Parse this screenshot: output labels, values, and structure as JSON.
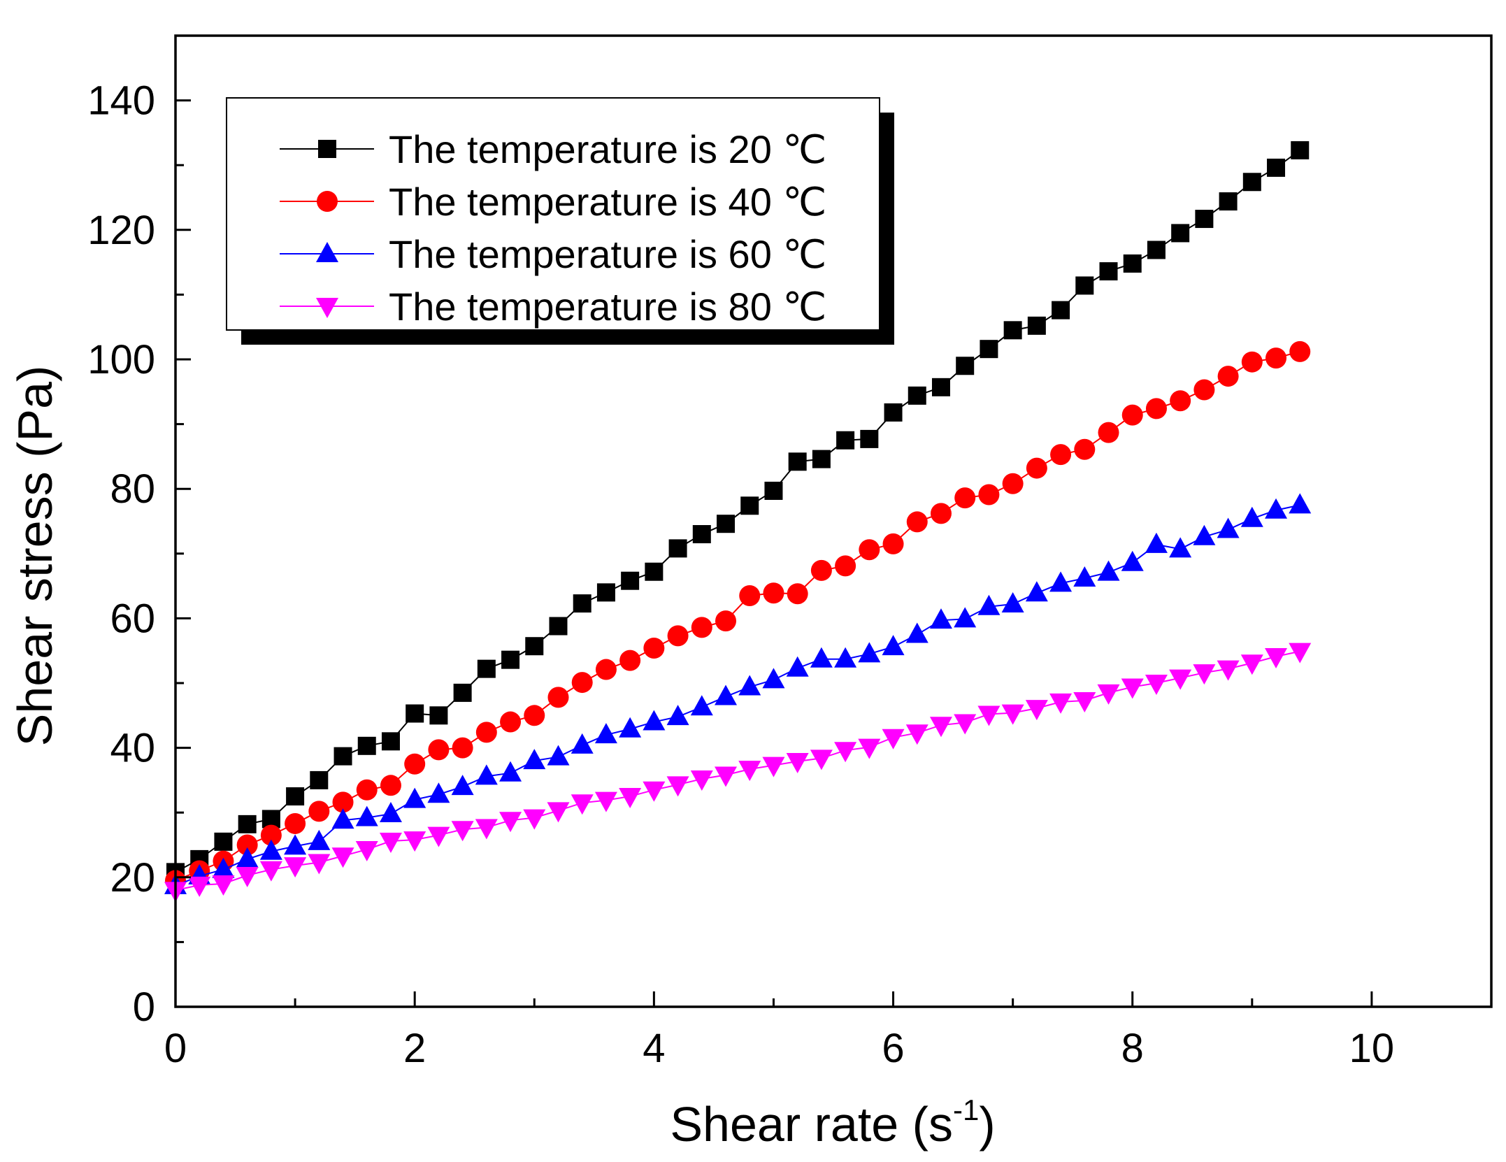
{
  "chart_data": {
    "type": "line",
    "title": "",
    "xlabel": {
      "text": "Shear rate (s",
      "superscript": "-1",
      "suffix": ")"
    },
    "ylabel": "Shear stress (Pa)",
    "xlim": [
      0,
      11
    ],
    "ylim": [
      0,
      150
    ],
    "xticks": [
      0,
      2,
      4,
      6,
      8,
      10
    ],
    "yticks": [
      0,
      20,
      40,
      60,
      80,
      100,
      120,
      140
    ],
    "grid": false,
    "legend": "top-left",
    "x": [
      0,
      0.2,
      0.4,
      0.6,
      0.8,
      1.0,
      1.2,
      1.4,
      1.6,
      1.8,
      2.0,
      2.2,
      2.4,
      2.6,
      2.8,
      3.0,
      3.2,
      3.4,
      3.6,
      3.8,
      4.0,
      4.2,
      4.4,
      4.6,
      4.8,
      5.0,
      5.2,
      5.4,
      5.6,
      5.8,
      6.0,
      6.2,
      6.4,
      6.6,
      6.8,
      7.0,
      7.2,
      7.4,
      7.6,
      7.8,
      8.0,
      8.2,
      8.4,
      8.6,
      8.8,
      9.0,
      9.2,
      9.4
    ],
    "series": [
      {
        "name": "The temperature is 20 ℃",
        "color": "#000000",
        "marker": "square",
        "values": [
          20.8,
          22.8,
          25.5,
          28.2,
          29.0,
          32.5,
          35.0,
          38.7,
          40.3,
          41.0,
          45.3,
          45.0,
          48.5,
          52.2,
          53.6,
          55.7,
          58.8,
          62.3,
          64.0,
          65.8,
          67.2,
          70.8,
          73.0,
          74.6,
          77.4,
          79.7,
          84.2,
          84.6,
          87.5,
          87.7,
          91.8,
          94.4,
          95.7,
          99.0,
          101.6,
          104.5,
          105.2,
          107.6,
          111.4,
          113.6,
          114.8,
          116.9,
          119.5,
          121.7,
          124.4,
          127.4,
          129.6,
          132.3
        ]
      },
      {
        "name": "The temperature is 40 ℃",
        "color": "#ff0000",
        "marker": "circle",
        "values": [
          19.5,
          21.0,
          22.5,
          25.0,
          26.5,
          28.3,
          30.2,
          31.6,
          33.5,
          34.2,
          37.5,
          39.7,
          40.0,
          42.4,
          44.0,
          45.0,
          47.8,
          50.1,
          52.1,
          53.5,
          55.4,
          57.3,
          58.6,
          59.6,
          63.5,
          63.9,
          63.8,
          67.4,
          68.1,
          70.6,
          71.5,
          74.9,
          76.2,
          78.6,
          79.1,
          80.8,
          83.2,
          85.3,
          86.1,
          88.7,
          91.4,
          92.4,
          93.6,
          95.3,
          97.4,
          99.6,
          100.2,
          101.2
        ]
      },
      {
        "name": "The temperature is 60 ℃",
        "color": "#0000ff",
        "marker": "triangle-up",
        "values": [
          18.7,
          20.2,
          21.2,
          22.8,
          24.0,
          24.8,
          25.5,
          28.8,
          29.2,
          29.8,
          32.0,
          32.8,
          34.0,
          35.6,
          36.1,
          38.0,
          38.6,
          40.4,
          42.0,
          42.9,
          44.0,
          44.8,
          46.3,
          47.9,
          49.4,
          50.5,
          52.3,
          53.7,
          53.7,
          54.5,
          55.6,
          57.5,
          59.7,
          59.9,
          61.8,
          62.2,
          63.9,
          65.4,
          66.2,
          67.1,
          68.6,
          71.4,
          70.7,
          72.6,
          73.7,
          75.4,
          76.7,
          77.5
        ]
      },
      {
        "name": "The temperature is 80 ℃",
        "color": "#ff00ff",
        "marker": "triangle-down",
        "values": [
          18.0,
          18.8,
          19.0,
          20.3,
          21.2,
          21.8,
          22.3,
          23.3,
          24.3,
          25.6,
          25.8,
          26.5,
          27.4,
          27.7,
          28.8,
          29.2,
          30.3,
          31.5,
          31.9,
          32.5,
          33.5,
          34.3,
          35.2,
          35.8,
          36.7,
          37.3,
          37.9,
          38.4,
          39.6,
          40.1,
          41.6,
          42.3,
          43.5,
          43.9,
          45.2,
          45.4,
          46.1,
          47.1,
          47.3,
          48.5,
          49.4,
          50.0,
          50.8,
          51.6,
          52.2,
          53.1,
          54.1,
          54.9
        ]
      }
    ]
  }
}
